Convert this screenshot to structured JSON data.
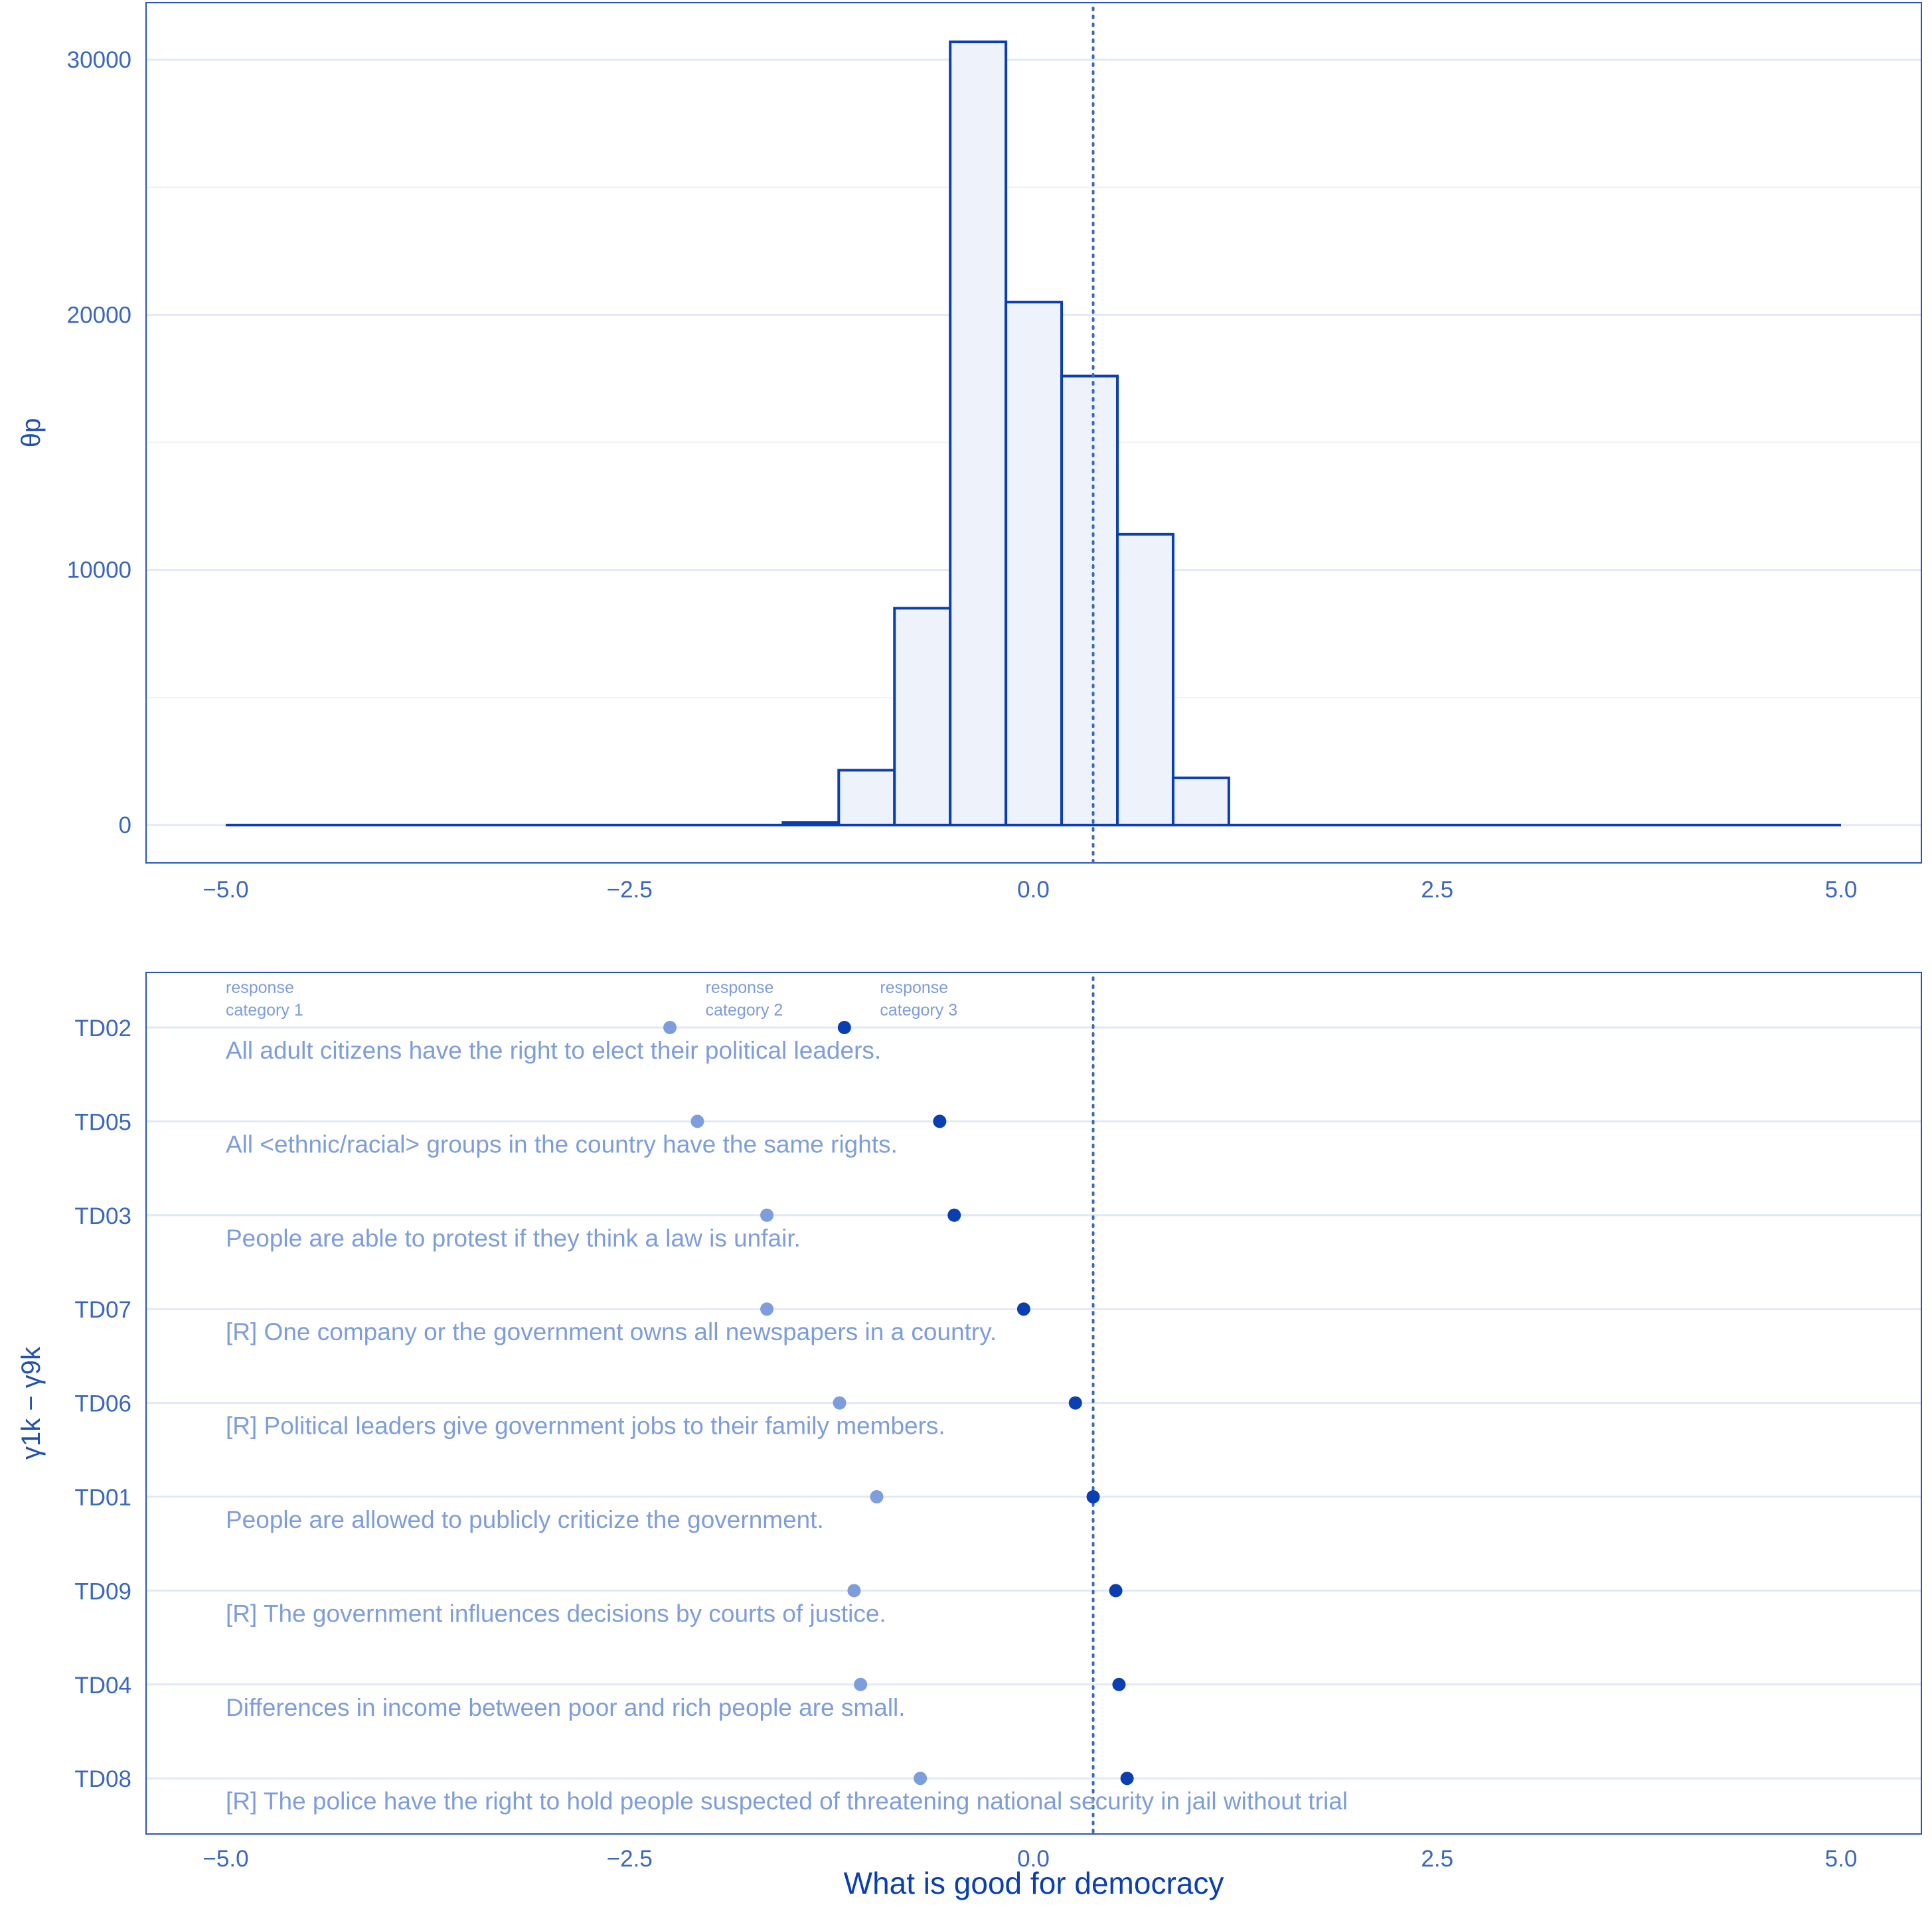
{
  "chart_data": [
    {
      "type": "bar",
      "subtype": "histogram",
      "ylabel": "θp",
      "xlim": [
        -5.0,
        5.0
      ],
      "ylim": [
        0,
        30000
      ],
      "x_ticks": [
        "-5.0",
        "-2.5",
        "0.0",
        "2.5",
        "5.0"
      ],
      "y_ticks": [
        "0",
        "10000",
        "20000",
        "30000"
      ],
      "bin_width": 0.345,
      "bins": [
        {
          "x0": -5.0,
          "x1": -1.55,
          "value": 0
        },
        {
          "x0": -1.55,
          "x1": -1.205,
          "value": 100
        },
        {
          "x0": -1.205,
          "x1": -0.86,
          "value": 2150
        },
        {
          "x0": -0.86,
          "x1": -0.515,
          "value": 8500
        },
        {
          "x0": -0.515,
          "x1": -0.17,
          "value": 30700
        },
        {
          "x0": -0.17,
          "x1": 0.175,
          "value": 20500
        },
        {
          "x0": 0.175,
          "x1": 0.52,
          "value": 17600
        },
        {
          "x0": 0.52,
          "x1": 0.865,
          "value": 11400
        },
        {
          "x0": 0.865,
          "x1": 1.21,
          "value": 1850
        },
        {
          "x0": 1.21,
          "x1": 5.0,
          "value": 0
        }
      ],
      "reference_line_x": 0.37,
      "grid": true,
      "fill_color": "#eef2fb",
      "stroke_color": "#0a3fb4"
    },
    {
      "type": "scatter",
      "ylabel": "γ1k − γ9k",
      "xlabel": "What is good for democracy",
      "xlim": [
        -5.0,
        5.0
      ],
      "x_ticks": [
        "-5.0",
        "-2.5",
        "0.0",
        "2.5",
        "5.0"
      ],
      "annotations": [
        "response category 1",
        "response category 2",
        "response category 3"
      ],
      "annotation_lines": [
        [
          "response",
          "category 1"
        ],
        [
          "response",
          "category 2"
        ],
        [
          "response",
          "category 3"
        ]
      ],
      "reference_line_x": 0.37,
      "series": [
        {
          "color": "#7d9ddc",
          "values": [
            -2.25,
            -2.08,
            -1.65,
            -1.65,
            -1.2,
            -0.97,
            -1.11,
            -1.07,
            -0.7
          ]
        },
        {
          "color": "#0a3fb4",
          "values": [
            -1.17,
            -0.58,
            -0.49,
            -0.06,
            0.26,
            0.37,
            0.51,
            0.53,
            0.58
          ]
        }
      ],
      "items": [
        {
          "code": "TD02",
          "text": "All adult citizens have the right to elect their political leaders."
        },
        {
          "code": "TD05",
          "text": "All <ethnic/racial> groups in the country have the same rights."
        },
        {
          "code": "TD03",
          "text": "People are able to protest if they think a law is unfair."
        },
        {
          "code": "TD07",
          "text": "[R] One company or the government owns all newspapers in a country."
        },
        {
          "code": "TD06",
          "text": "[R] Political leaders give government jobs to their family members."
        },
        {
          "code": "TD01",
          "text": "People are allowed to publicly criticize the government."
        },
        {
          "code": "TD09",
          "text": "[R] The government influences decisions by courts of justice."
        },
        {
          "code": "TD04",
          "text": "Differences in income between poor and rich people are small."
        },
        {
          "code": "TD08",
          "text": "[R] The police have the right to hold people suspected of threatening national security in jail without trial"
        }
      ]
    }
  ]
}
